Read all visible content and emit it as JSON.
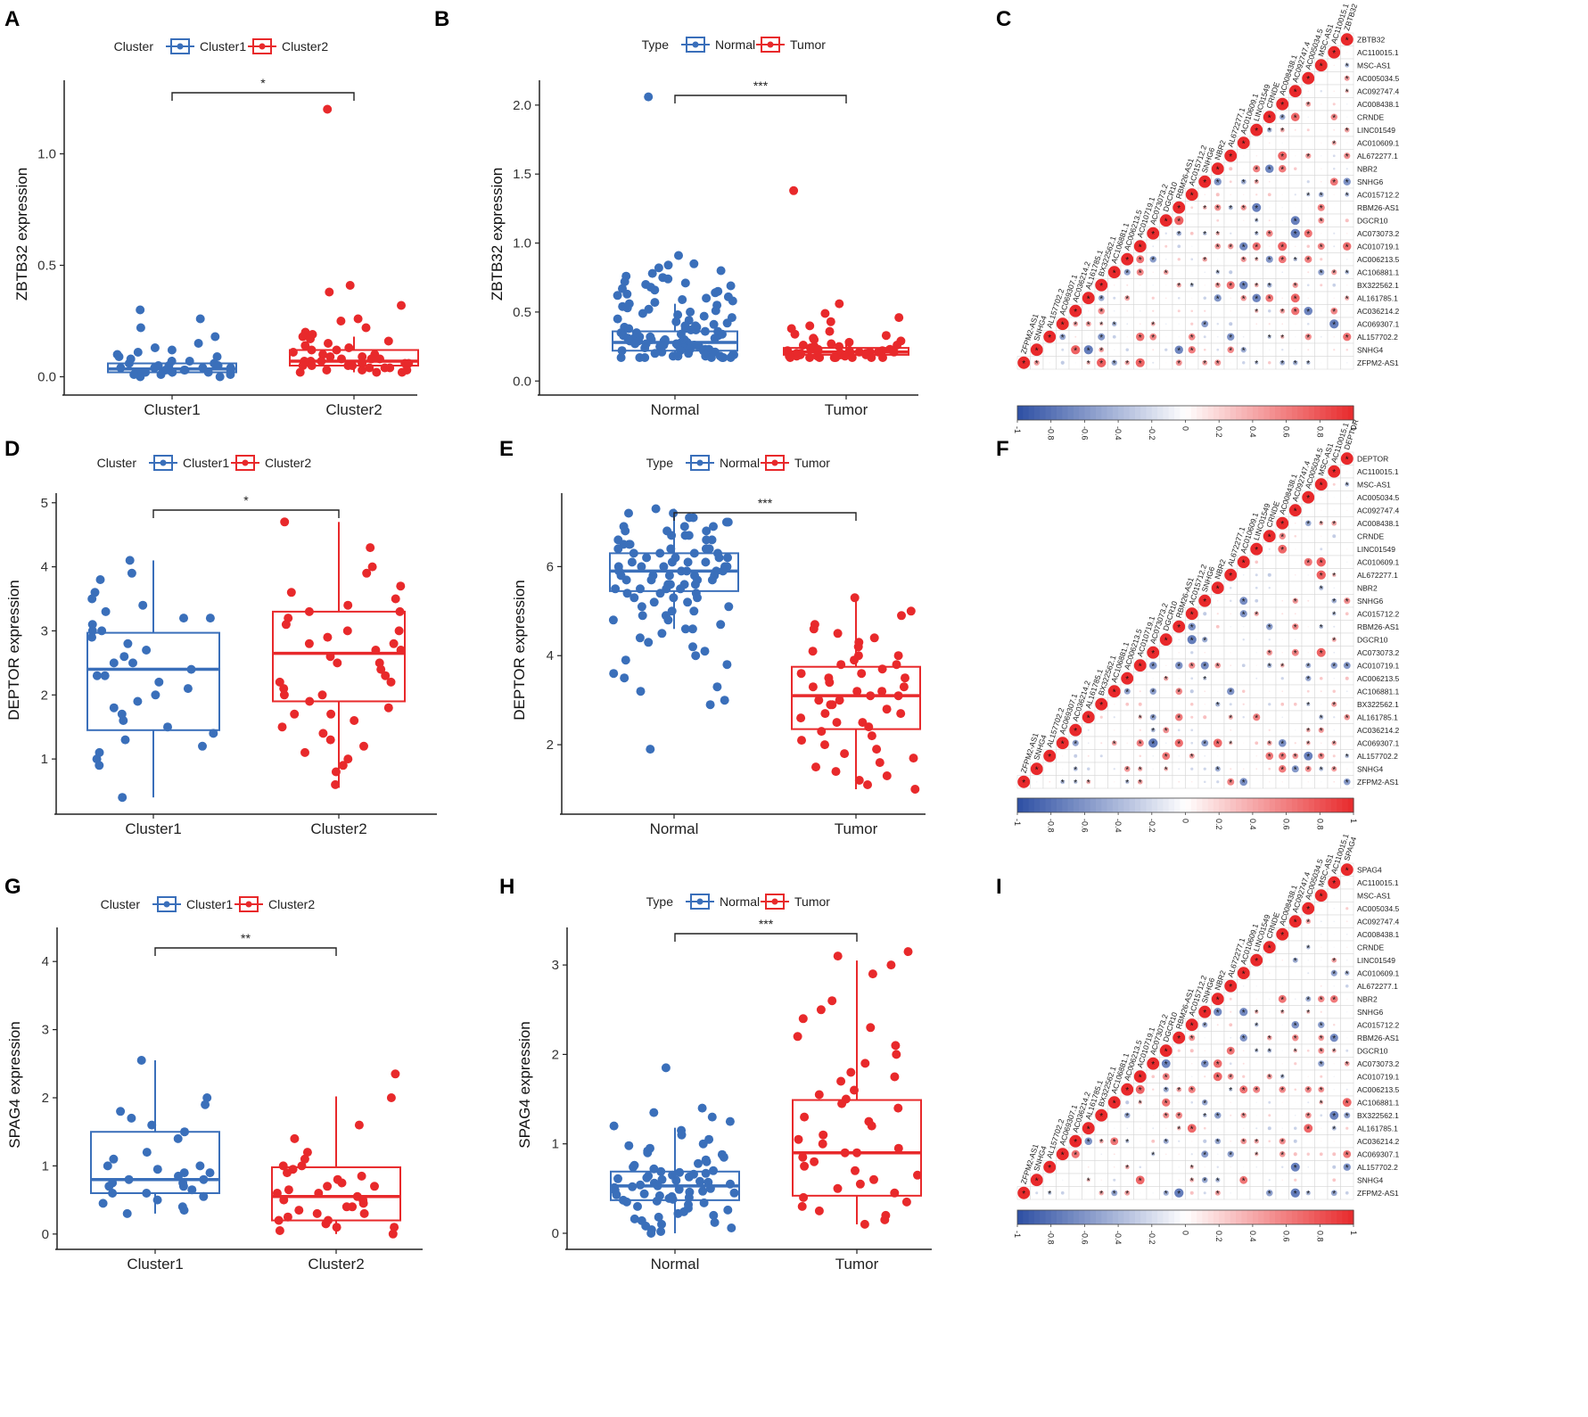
{
  "figure": {
    "width": 1781,
    "height": 1589
  },
  "colors": {
    "normal": "#3a6fba",
    "cluster1": "#3a6fba",
    "tumor": "#e8292b",
    "cluster2": "#e8292b",
    "neg": "#2d4fa3",
    "pos": "#e8292b"
  },
  "corr_labels": {
    "C": [
      "ZBTB32",
      "AC110015.1",
      "MSC-AS1",
      "AC005034.5",
      "AC092747.4",
      "AC008438.1",
      "CRNDE",
      "LINC01549",
      "AC010609.1",
      "AL672277.1",
      "NBR2",
      "SNHG6",
      "AC015712.2",
      "RBM26-AS1",
      "DGCR10",
      "AC073073.2",
      "AC010719.1",
      "AC006213.5",
      "AC106881.1",
      "BX322562.1",
      "AL161785.1",
      "AC036214.2",
      "AC069307.1",
      "AL157702.2",
      "SNHG4",
      "ZFPM2-AS1"
    ],
    "F": [
      "DEPTOR",
      "AC110015.1",
      "MSC-AS1",
      "AC005034.5",
      "AC092747.4",
      "AC008438.1",
      "CRNDE",
      "LINC01549",
      "AC010609.1",
      "AL672277.1",
      "NBR2",
      "SNHG6",
      "AC015712.2",
      "RBM26-AS1",
      "DGCR10",
      "AC073073.2",
      "AC010719.1",
      "AC006213.5",
      "AC106881.1",
      "BX322562.1",
      "AL161785.1",
      "AC036214.2",
      "AC069307.1",
      "AL157702.2",
      "SNHG4",
      "ZFPM2-AS1"
    ],
    "I": [
      "SPAG4",
      "AC110015.1",
      "MSC-AS1",
      "AC005034.5",
      "AC092747.4",
      "AC008438.1",
      "CRNDE",
      "LINC01549",
      "AC010609.1",
      "AL672277.1",
      "NBR2",
      "SNHG6",
      "AC015712.2",
      "RBM26-AS1",
      "DGCR10",
      "AC073073.2",
      "AC010719.1",
      "AC006213.5",
      "AC106881.1",
      "BX322562.1",
      "AL161785.1",
      "AC036214.2",
      "AC069307.1",
      "AL157702.2",
      "SNHG4",
      "ZFPM2-AS1"
    ]
  },
  "chart_data": [
    {
      "panel": "A",
      "type": "box",
      "legend_title": "Cluster",
      "legend_entries": [
        "Cluster1",
        "Cluster2"
      ],
      "categories": [
        "Cluster1",
        "Cluster2"
      ],
      "ylabel": "ZBTB32 expression",
      "ylim": [
        -0.05,
        1.33
      ],
      "yticks": [
        0.0,
        0.5,
        1.0
      ],
      "tick_decimals": 1,
      "significance": "*",
      "boxes": [
        {
          "q1": 0.02,
          "median": 0.035,
          "q3": 0.06,
          "wlo": 0.0,
          "whi": 0.09
        },
        {
          "q1": 0.05,
          "median": 0.07,
          "q3": 0.12,
          "wlo": 0.02,
          "whi": 0.18
        }
      ],
      "points": [
        [
          0.3,
          0.26,
          0.22,
          0.18,
          0.15,
          0.13,
          0.12,
          0.11,
          0.1,
          0.09,
          0.09,
          0.08,
          0.07,
          0.07,
          0.06,
          0.06,
          0.05,
          0.05,
          0.05,
          0.04,
          0.04,
          0.04,
          0.04,
          0.03,
          0.03,
          0.03,
          0.03,
          0.03,
          0.02,
          0.02,
          0.02,
          0.02,
          0.01,
          0.01,
          0.01,
          0.0,
          0.0
        ],
        [
          1.2,
          0.41,
          0.38,
          0.32,
          0.26,
          0.25,
          0.22,
          0.2,
          0.19,
          0.18,
          0.17,
          0.16,
          0.15,
          0.14,
          0.13,
          0.12,
          0.12,
          0.11,
          0.1,
          0.1,
          0.09,
          0.09,
          0.08,
          0.08,
          0.08,
          0.07,
          0.07,
          0.07,
          0.06,
          0.06,
          0.06,
          0.06,
          0.05,
          0.05,
          0.05,
          0.05,
          0.04,
          0.04,
          0.04,
          0.03,
          0.03,
          0.03,
          0.02,
          0.02,
          0.02
        ]
      ]
    },
    {
      "panel": "B",
      "type": "box",
      "legend_title": "Type",
      "legend_entries": [
        "Normal",
        "Tumor"
      ],
      "categories": [
        "Normal",
        "Tumor"
      ],
      "ylabel": "ZBTB32 expression",
      "ylim": [
        -0.05,
        2.18
      ],
      "yticks": [
        0.0,
        0.5,
        1.0,
        1.5,
        2.0
      ],
      "tick_decimals": 1,
      "significance": "***",
      "boxes": [
        {
          "q1": 0.22,
          "median": 0.28,
          "q3": 0.36,
          "wlo": 0.17,
          "whi": 0.56
        },
        {
          "q1": 0.19,
          "median": 0.21,
          "q3": 0.24,
          "wlo": 0.17,
          "whi": 0.29
        }
      ],
      "points": [
        [
          2.06,
          0.91,
          0.85,
          0.84,
          0.82,
          0.8,
          0.78,
          0.76,
          0.75,
          0.74,
          0.72,
          0.71,
          0.7,
          0.69,
          0.68,
          0.67,
          0.66,
          0.65,
          0.64,
          0.63,
          0.62,
          0.61,
          0.6,
          0.59,
          0.58,
          0.57,
          0.56,
          0.55,
          0.54,
          0.53,
          0.52,
          0.51,
          0.5,
          0.49,
          0.48,
          0.47,
          0.46,
          0.45,
          0.44,
          0.43,
          0.42,
          0.41,
          0.4,
          0.4,
          0.39,
          0.39,
          0.38,
          0.38,
          0.37,
          0.37,
          0.36,
          0.36,
          0.35,
          0.35,
          0.34,
          0.34,
          0.33,
          0.33,
          0.32,
          0.32,
          0.31,
          0.31,
          0.31,
          0.3,
          0.3,
          0.3,
          0.29,
          0.29,
          0.29,
          0.28,
          0.28,
          0.28,
          0.27,
          0.27,
          0.27,
          0.26,
          0.26,
          0.26,
          0.25,
          0.25,
          0.25,
          0.24,
          0.24,
          0.24,
          0.23,
          0.23,
          0.23,
          0.22,
          0.22,
          0.22,
          0.21,
          0.21,
          0.21,
          0.2,
          0.2,
          0.2,
          0.19,
          0.19,
          0.19,
          0.18,
          0.18,
          0.18,
          0.18,
          0.17,
          0.17,
          0.17,
          0.17,
          0.17,
          0.17,
          0.17
        ],
        [
          1.38,
          0.56,
          0.49,
          0.46,
          0.43,
          0.4,
          0.38,
          0.36,
          0.34,
          0.33,
          0.31,
          0.3,
          0.29,
          0.28,
          0.27,
          0.26,
          0.26,
          0.25,
          0.25,
          0.24,
          0.24,
          0.23,
          0.23,
          0.22,
          0.22,
          0.22,
          0.21,
          0.21,
          0.21,
          0.21,
          0.2,
          0.2,
          0.2,
          0.2,
          0.19,
          0.19,
          0.19,
          0.19,
          0.18,
          0.18,
          0.18,
          0.18,
          0.17,
          0.17,
          0.17,
          0.17,
          0.17,
          0.17,
          0.17,
          0.17
        ]
      ]
    },
    {
      "panel": "D",
      "type": "box",
      "legend_title": "Cluster",
      "legend_entries": [
        "Cluster1",
        "Cluster2"
      ],
      "categories": [
        "Cluster1",
        "Cluster2"
      ],
      "ylabel": "DEPTOR expression",
      "ylim": [
        0.25,
        5.15
      ],
      "yticks": [
        1,
        2,
        3,
        4,
        5
      ],
      "tick_decimals": 0,
      "significance": "*",
      "boxes": [
        {
          "q1": 1.45,
          "median": 2.4,
          "q3": 2.97,
          "wlo": 0.4,
          "whi": 4.1
        },
        {
          "q1": 1.9,
          "median": 2.65,
          "q3": 3.3,
          "wlo": 0.55,
          "whi": 4.7
        }
      ],
      "points": [
        [
          4.1,
          3.9,
          3.8,
          3.6,
          3.5,
          3.4,
          3.3,
          3.2,
          3.2,
          3.1,
          3.0,
          3.0,
          2.9,
          2.8,
          2.7,
          2.6,
          2.5,
          2.5,
          2.4,
          2.3,
          2.3,
          2.2,
          2.1,
          2.0,
          1.9,
          1.8,
          1.7,
          1.6,
          1.5,
          1.4,
          1.3,
          1.2,
          1.1,
          1.0,
          0.9,
          0.4
        ],
        [
          4.7,
          4.3,
          4.0,
          3.9,
          3.7,
          3.6,
          3.5,
          3.4,
          3.3,
          3.3,
          3.2,
          3.1,
          3.0,
          3.0,
          2.9,
          2.8,
          2.8,
          2.7,
          2.7,
          2.6,
          2.5,
          2.5,
          2.4,
          2.3,
          2.2,
          2.2,
          2.1,
          2.0,
          2.0,
          1.9,
          1.8,
          1.7,
          1.7,
          1.6,
          1.5,
          1.4,
          1.3,
          1.2,
          1.1,
          1.0,
          0.9,
          0.8,
          0.6
        ]
      ]
    },
    {
      "panel": "E",
      "type": "box",
      "legend_title": "Type",
      "legend_entries": [
        "Normal",
        "Tumor"
      ],
      "categories": [
        "Normal",
        "Tumor"
      ],
      "ylabel": "DEPTOR expression",
      "ylim": [
        0.6,
        7.65
      ],
      "yticks": [
        2,
        4,
        6
      ],
      "tick_decimals": 0,
      "significance": "***",
      "boxes": [
        {
          "q1": 5.45,
          "median": 5.9,
          "q3": 6.3,
          "wlo": 4.6,
          "whi": 7.3
        },
        {
          "q1": 2.35,
          "median": 3.1,
          "q3": 3.75,
          "wlo": 1.0,
          "whi": 5.3
        }
      ],
      "points": [
        [
          7.3,
          7.2,
          7.2,
          7.1,
          7.1,
          7.0,
          7.0,
          6.9,
          6.9,
          6.9,
          6.8,
          6.8,
          6.8,
          6.7,
          6.7,
          6.7,
          6.6,
          6.6,
          6.6,
          6.5,
          6.5,
          6.5,
          6.4,
          6.4,
          6.4,
          6.4,
          6.3,
          6.3,
          6.3,
          6.3,
          6.2,
          6.2,
          6.2,
          6.2,
          6.1,
          6.1,
          6.1,
          6.1,
          6.0,
          6.0,
          6.0,
          6.0,
          6.0,
          5.9,
          5.9,
          5.9,
          5.9,
          5.9,
          5.8,
          5.8,
          5.8,
          5.8,
          5.8,
          5.7,
          5.7,
          5.7,
          5.7,
          5.6,
          5.6,
          5.6,
          5.6,
          5.5,
          5.5,
          5.5,
          5.5,
          5.4,
          5.4,
          5.4,
          5.3,
          5.3,
          5.3,
          5.2,
          5.2,
          5.1,
          5.1,
          5.0,
          5.0,
          4.9,
          4.9,
          4.8,
          4.8,
          4.7,
          4.6,
          4.6,
          4.5,
          4.4,
          4.3,
          4.2,
          4.1,
          4.0,
          3.9,
          3.8,
          3.6,
          3.5,
          3.3,
          3.2,
          3.0,
          2.9,
          1.9
        ],
        [
          5.3,
          5.0,
          4.9,
          4.7,
          4.6,
          4.5,
          4.4,
          4.3,
          4.2,
          4.1,
          4.0,
          4.0,
          3.9,
          3.8,
          3.8,
          3.7,
          3.6,
          3.6,
          3.5,
          3.5,
          3.4,
          3.3,
          3.3,
          3.2,
          3.2,
          3.1,
          3.1,
          3.0,
          3.0,
          2.9,
          2.9,
          2.8,
          2.7,
          2.7,
          2.6,
          2.5,
          2.5,
          2.4,
          2.3,
          2.2,
          2.1,
          2.0,
          1.9,
          1.8,
          1.7,
          1.6,
          1.5,
          1.4,
          1.3,
          1.2,
          1.1,
          1.0
        ]
      ]
    },
    {
      "panel": "G",
      "type": "box",
      "legend_title": "Cluster",
      "legend_entries": [
        "Cluster1",
        "Cluster2"
      ],
      "categories": [
        "Cluster1",
        "Cluster2"
      ],
      "ylabel": "SPAG4 expression",
      "ylim": [
        -0.12,
        4.5
      ],
      "yticks": [
        0,
        1,
        2,
        3,
        4
      ],
      "tick_decimals": 0,
      "significance": "**",
      "boxes": [
        {
          "q1": 0.6,
          "median": 0.8,
          "q3": 1.5,
          "wlo": 0.3,
          "whi": 2.55
        },
        {
          "q1": 0.2,
          "median": 0.55,
          "q3": 0.98,
          "wlo": 0.0,
          "whi": 2.02
        }
      ],
      "points": [
        [
          2.55,
          2.0,
          1.9,
          1.8,
          1.7,
          1.6,
          1.5,
          1.4,
          1.2,
          1.1,
          1.0,
          1.0,
          0.95,
          0.9,
          0.9,
          0.85,
          0.8,
          0.8,
          0.75,
          0.75,
          0.7,
          0.7,
          0.65,
          0.6,
          0.6,
          0.55,
          0.5,
          0.45,
          0.4,
          0.35,
          0.3
        ],
        [
          2.35,
          2.0,
          1.6,
          1.4,
          1.2,
          1.1,
          1.0,
          1.0,
          0.95,
          0.9,
          0.85,
          0.8,
          0.75,
          0.7,
          0.7,
          0.65,
          0.6,
          0.6,
          0.55,
          0.5,
          0.5,
          0.45,
          0.4,
          0.4,
          0.35,
          0.3,
          0.3,
          0.25,
          0.2,
          0.2,
          0.15,
          0.1,
          0.1,
          0.05,
          0.0
        ]
      ]
    },
    {
      "panel": "H",
      "type": "box",
      "legend_title": "Type",
      "legend_entries": [
        "Normal",
        "Tumor"
      ],
      "categories": [
        "Normal",
        "Tumor"
      ],
      "ylabel": "SPAG4 expression",
      "ylim": [
        -0.1,
        3.42
      ],
      "yticks": [
        0,
        1,
        2,
        3
      ],
      "tick_decimals": 0,
      "significance": "***",
      "boxes": [
        {
          "q1": 0.37,
          "median": 0.53,
          "q3": 0.69,
          "wlo": 0.0,
          "whi": 1.18
        },
        {
          "q1": 0.42,
          "median": 0.9,
          "q3": 1.49,
          "wlo": 0.1,
          "whi": 3.05
        }
      ],
      "points": [
        [
          1.85,
          1.4,
          1.35,
          1.3,
          1.25,
          1.2,
          1.15,
          1.1,
          1.05,
          1.0,
          0.98,
          0.95,
          0.92,
          0.9,
          0.88,
          0.85,
          0.82,
          0.8,
          0.78,
          0.76,
          0.74,
          0.72,
          0.7,
          0.69,
          0.68,
          0.67,
          0.66,
          0.65,
          0.64,
          0.63,
          0.62,
          0.61,
          0.6,
          0.59,
          0.58,
          0.57,
          0.56,
          0.55,
          0.54,
          0.53,
          0.52,
          0.51,
          0.5,
          0.49,
          0.48,
          0.47,
          0.46,
          0.45,
          0.44,
          0.43,
          0.42,
          0.41,
          0.4,
          0.39,
          0.38,
          0.37,
          0.36,
          0.35,
          0.34,
          0.32,
          0.3,
          0.28,
          0.26,
          0.24,
          0.22,
          0.2,
          0.18,
          0.16,
          0.14,
          0.12,
          0.1,
          0.08,
          0.06,
          0.04,
          0.02,
          0.0
        ],
        [
          3.15,
          3.1,
          3.0,
          2.9,
          2.6,
          2.5,
          2.4,
          2.3,
          2.2,
          2.1,
          2.0,
          1.9,
          1.8,
          1.75,
          1.7,
          1.6,
          1.55,
          1.5,
          1.45,
          1.4,
          1.3,
          1.25,
          1.2,
          1.1,
          1.05,
          1.0,
          0.95,
          0.9,
          0.9,
          0.85,
          0.8,
          0.75,
          0.7,
          0.65,
          0.6,
          0.55,
          0.5,
          0.45,
          0.4,
          0.35,
          0.3,
          0.25,
          0.2,
          0.15,
          0.1
        ]
      ]
    },
    {
      "panel": "C",
      "type": "heatmap",
      "method": "correlation circles",
      "labels_key": "C",
      "colorbar_ticks": [
        "-1",
        "-0.8",
        "-0.6",
        "-0.4",
        "-0.2",
        "0",
        "0.2",
        "0.4",
        "0.6",
        "0.8",
        "1"
      ],
      "vrange": [
        -1,
        1
      ],
      "seed": 11
    },
    {
      "panel": "F",
      "type": "heatmap",
      "method": "correlation circles",
      "labels_key": "F",
      "colorbar_ticks": [
        "-1",
        "-0.8",
        "-0.6",
        "-0.4",
        "-0.2",
        "0",
        "0.2",
        "0.4",
        "0.6",
        "0.8",
        "1"
      ],
      "vrange": [
        -1,
        1
      ],
      "seed": 23
    },
    {
      "panel": "I",
      "type": "heatmap",
      "method": "correlation circles",
      "labels_key": "I",
      "colorbar_ticks": [
        "-1",
        "-0.8",
        "-0.6",
        "-0.4",
        "-0.2",
        "0",
        "0.2",
        "0.4",
        "0.6",
        "0.8",
        "1"
      ],
      "vrange": [
        -1,
        1
      ],
      "seed": 37
    }
  ]
}
